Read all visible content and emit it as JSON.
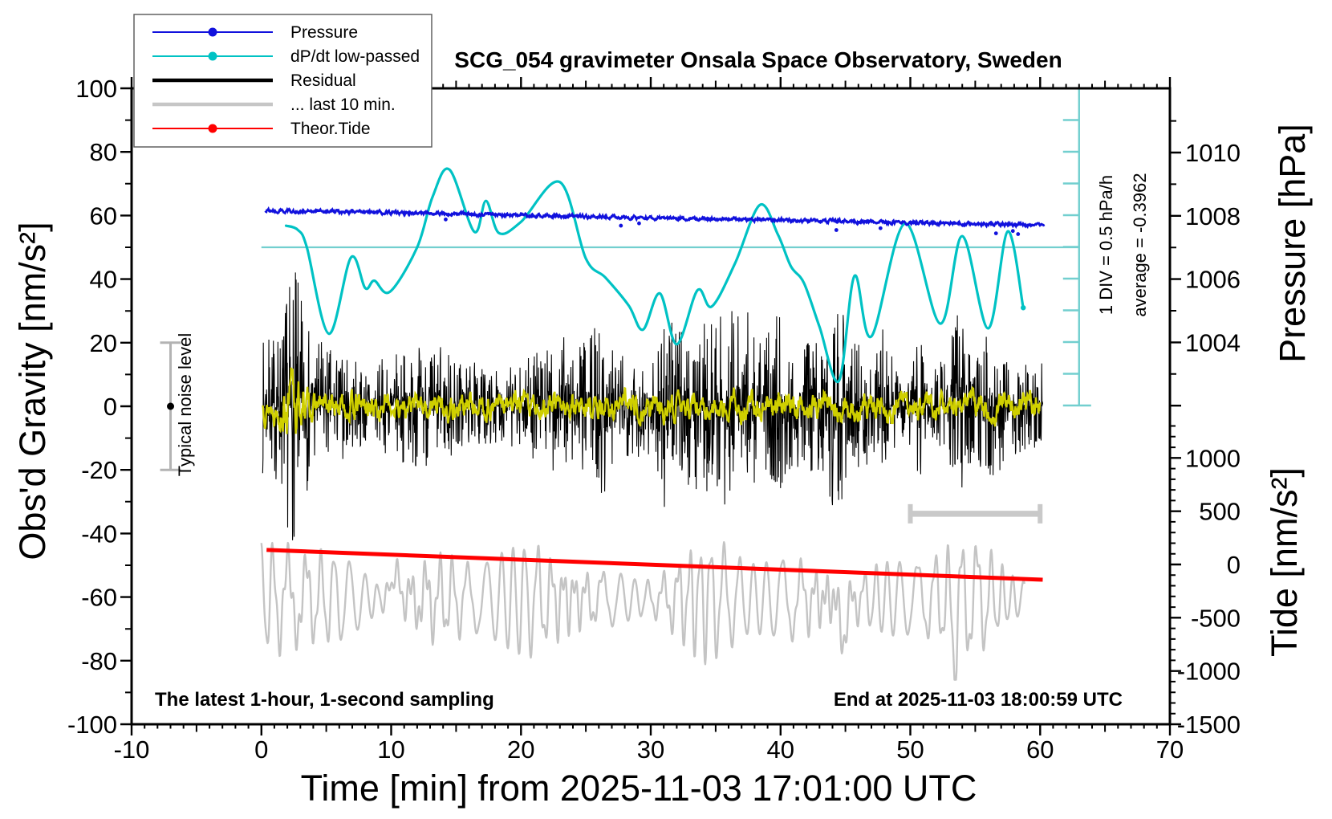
{
  "title": "SCG_054 gravimeter Onsala Space Observatory, Sweden",
  "annotations": {
    "sampling_note": "The latest 1-hour, 1-second sampling",
    "end_time_note": "End at 2025-11-03 18:00:59 UTC",
    "div_scale_note": "1 DIV = 0.5 hPa/h",
    "average_note": "average = -0.3962",
    "noise_level_note": "Typical noise level"
  },
  "legend": {
    "items": [
      {
        "label": "Pressure",
        "color": "#1111dd",
        "style": "line-dot"
      },
      {
        "label": "dP/dt low-passed",
        "color": "#00c2c4",
        "style": "line-dot"
      },
      {
        "label": "Residual",
        "color": "#000000",
        "style": "thick-line"
      },
      {
        "label": "... last 10 min.",
        "color": "#c6c6c6",
        "style": "thick-line"
      },
      {
        "label": "Theor.Tide",
        "color": "#ff0000",
        "style": "line-dot"
      }
    ]
  },
  "axes": {
    "x": {
      "label": "Time [min] from 2025-11-03 17:01:00 UTC",
      "min": -10,
      "max": 70,
      "major_ticks": [
        -10,
        0,
        10,
        20,
        30,
        40,
        50,
        60,
        70
      ],
      "minor_step": 1,
      "medium_step": 5
    },
    "y_left": {
      "label": "Obs'd Gravity [nm/s²]",
      "min": -100,
      "max": 100,
      "major_ticks": [
        -100,
        -80,
        -60,
        -40,
        -20,
        0,
        20,
        40,
        60,
        80,
        100
      ],
      "minor_step": 10
    },
    "y_pressure": {
      "label": "Pressure [hPa]",
      "major_ticks": [
        1004,
        1006,
        1008,
        1010
      ],
      "minor_step": 1
    },
    "y_tide": {
      "label": "Tide [nm/s²]",
      "major_ticks": [
        -1500,
        -1000,
        -500,
        0,
        500,
        1000
      ],
      "minor_step": 100
    }
  },
  "chart_data": {
    "type": "line",
    "title": "SCG_054 gravimeter Onsala Space Observatory, Sweden",
    "x_range": [
      -10,
      70
    ],
    "grid": false,
    "legend_position": "top-left",
    "series": [
      {
        "id": "pressure",
        "name": "Pressure",
        "axis": "pressure_hPa",
        "color": "#1111dd",
        "t_start": 0.3,
        "t_end": 60.3,
        "start_hPa": 1008.17,
        "end_hPa": 1007.71,
        "noise_hPa": 0.05,
        "outlier_dot_t": [
          14.2,
          27.7,
          29.1,
          44.3,
          47.7,
          56.6,
          57.9,
          58.3
        ]
      },
      {
        "id": "dpdt",
        "name": "dP/dt low-passed",
        "axis": "gravity_left",
        "color": "#00c2c4",
        "zero_reference_gravity": 50,
        "div_value": "0.5 hPa/h",
        "average_hPa_per_h": -0.3962,
        "points": [
          [
            1.9,
            56.8
          ],
          [
            2.8,
            55.5
          ],
          [
            3.5,
            50
          ],
          [
            5.2,
            22.8
          ],
          [
            6.9,
            46.8
          ],
          [
            8,
            37.2
          ],
          [
            8.7,
            39.5
          ],
          [
            9.9,
            36
          ],
          [
            12,
            50
          ],
          [
            13.2,
            66
          ],
          [
            14.5,
            74.4
          ],
          [
            16.4,
            54.9
          ],
          [
            17.3,
            64.6
          ],
          [
            18.3,
            54.5
          ],
          [
            20,
            58
          ],
          [
            23,
            70.5
          ],
          [
            25,
            46.5
          ],
          [
            26.5,
            40.5
          ],
          [
            28.3,
            31.7
          ],
          [
            29.4,
            24.1
          ],
          [
            30.7,
            35.5
          ],
          [
            32,
            19.5
          ],
          [
            33.6,
            36.5
          ],
          [
            34.7,
            31.4
          ],
          [
            36.5,
            45
          ],
          [
            38.4,
            63.3
          ],
          [
            39.8,
            54
          ],
          [
            40.8,
            44
          ],
          [
            41.8,
            38.8
          ],
          [
            43,
            25
          ],
          [
            44.5,
            8
          ],
          [
            45.7,
            41
          ],
          [
            47,
            22
          ],
          [
            49.6,
            57.5
          ],
          [
            52.3,
            26
          ],
          [
            54,
            53.5
          ],
          [
            56,
            24.5
          ],
          [
            57.5,
            55
          ],
          [
            58.7,
            31
          ]
        ]
      },
      {
        "id": "residual",
        "name": "Residual",
        "axis": "gravity_left",
        "color": "#000000",
        "t_start": 0.1,
        "t_end": 60.2,
        "center": 0,
        "base_amp": 14,
        "amp_wobble": [
          3,
          2.5
        ],
        "burst": {
          "t": 2.45,
          "amp": 14,
          "sigma": 0.55
        },
        "spike_clusters": [
          [
            26.2,
            8,
            0.5
          ],
          [
            31.2,
            10,
            0.35
          ],
          [
            36.8,
            9,
            1.0
          ],
          [
            39.9,
            10,
            0.6
          ],
          [
            44.3,
            10,
            0.45
          ],
          [
            47.9,
            8,
            0.4
          ],
          [
            50.7,
            7,
            0.35
          ],
          [
            53.6,
            8,
            0.4
          ],
          [
            56.3,
            8,
            0.35
          ]
        ],
        "seed": 7
      },
      {
        "id": "residual_lowpass",
        "name": "Residual low-passed",
        "axis": "gravity_left",
        "color": "#cfcf00",
        "t_start": 0.1,
        "t_end": 60,
        "center": 0,
        "amp": 2.2,
        "burst": {
          "t": 2.45,
          "factor": 2.6,
          "sigma": 0.6
        },
        "seed": 13
      },
      {
        "id": "last10",
        "name": "... last 10 min.",
        "axis": "gravity_left",
        "color": "#c4c4c4",
        "t_start": 0,
        "t_end": 58.8,
        "center": -60.5,
        "amp": 10,
        "period_min": 1.05,
        "events": [
          [
            44.85,
            -13,
            0.25
          ],
          [
            53.4,
            -11,
            0.22
          ],
          [
            10.3,
            8,
            0.3
          ]
        ],
        "seed": 21
      },
      {
        "id": "theor_tide",
        "name": "Theor.Tide",
        "axis": "tide_right",
        "color": "#ff0000",
        "t_start": 0.4,
        "t_end": 60.2,
        "start_nm_s2": 137,
        "end_nm_s2": -143
      }
    ],
    "markers": {
      "dpdt_zero_line": {
        "gravity": 50,
        "t_from": 0,
        "t_to": 63,
        "color": "#72cfcf"
      },
      "dpdt_scale_bar": {
        "t": 63,
        "divisions": 10,
        "div_value_hPa_per_h": 0.5,
        "color": "#72cfcf"
      },
      "noise_error_bar": {
        "t": -7,
        "gravity_low": -20,
        "gravity_high": 20,
        "dot_gravity": 0,
        "color": "#b3b3b3"
      },
      "ten_min_bar": {
        "t_from": 50,
        "t_to": 60,
        "gravity": -33.8,
        "color": "#c9c9c9"
      }
    }
  }
}
